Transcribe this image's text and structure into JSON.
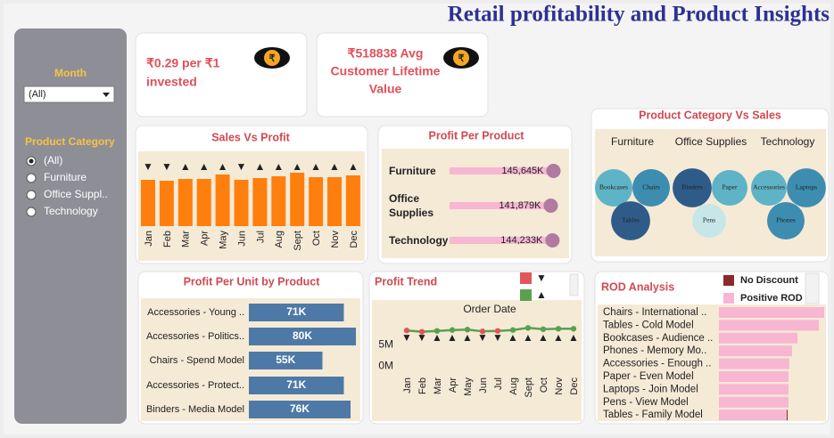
{
  "title": "Retail profitability and Product Insights",
  "filters": {
    "month": {
      "label": "Month",
      "selected": "(All)"
    },
    "category": {
      "label": "Product Category",
      "options": [
        "(All)",
        "Furniture",
        "Office Suppl..",
        "Technology"
      ],
      "selected": 0
    }
  },
  "kpis": [
    {
      "icon": "₹",
      "lines": [
        "₹0.29 per ₹1",
        "invested"
      ]
    },
    {
      "icon": "₹",
      "lines": [
        "₹518838 Avg",
        "Customer Lifetime",
        "Value"
      ]
    }
  ],
  "chart_data": [
    {
      "type": "bar",
      "title": "Sales Vs Profit",
      "categories": [
        "Jan",
        "Feb",
        "Mar",
        "Apr",
        "May",
        "Jun",
        "Jul",
        "Aug",
        "Sept",
        "Oct",
        "Nov",
        "Dec"
      ],
      "values": [
        52,
        51,
        53,
        53,
        58,
        52,
        54,
        56,
        60,
        55,
        55,
        57
      ],
      "indicators": [
        "▼",
        "▼",
        "▲",
        "▲",
        "▲",
        "▼",
        "▲",
        "▲",
        "▲",
        "▲",
        "▲",
        "▲"
      ],
      "color": "#ff7f0e",
      "ylim": [
        0,
        62
      ]
    },
    {
      "type": "hbar",
      "title": "Profit Per Product",
      "categories": [
        "Furniture",
        "Office Supplies",
        "Technology"
      ],
      "values": [
        145645,
        141879,
        144233
      ],
      "value_labels": [
        "145,645K",
        "141,879K",
        "144,233K"
      ],
      "color": "#f7b6d2",
      "marker_color": "#b07aa1",
      "xlim": [
        0,
        150000
      ]
    },
    {
      "type": "bubble",
      "title": "Product Category Vs Sales",
      "groups": [
        {
          "name": "Furniture",
          "categories": [
            "Bookcases",
            "Chairs",
            "Tables"
          ],
          "values": [
            440,
            440,
            480
          ],
          "colors": [
            "#5fb3c6",
            "#3d8db0",
            "#2f5b88"
          ]
        },
        {
          "name": "Office Supplies",
          "categories": [
            "Binders",
            "Paper",
            "Pens"
          ],
          "values": [
            480,
            400,
            360
          ],
          "colors": [
            "#2f5b88",
            "#5fb3c6",
            "#c6e6e8"
          ]
        },
        {
          "name": "Technology",
          "categories": [
            "Accessories",
            "Laptops",
            "Phones"
          ],
          "values": [
            400,
            480,
            440
          ],
          "colors": [
            "#5fb3c6",
            "#3d8db0",
            "#3d8db0"
          ]
        }
      ]
    },
    {
      "type": "hbar",
      "title": "Profit Per Unit by Product",
      "categories": [
        "Accessories - Young ..",
        "Accessories - Politics..",
        "Chairs - Spend Model",
        "Accessories - Protect..",
        "Binders - Media Model"
      ],
      "values": [
        71000,
        80000,
        55000,
        71000,
        76000
      ],
      "value_labels": [
        "71K",
        "80K",
        "55K",
        "71K",
        "76K"
      ],
      "color": "#4e79a7",
      "xlim": [
        0,
        80000
      ]
    },
    {
      "type": "line",
      "title": "Profit Trend",
      "x_title": "Order Date",
      "categories": [
        "Jan",
        "Feb",
        "Mar",
        "Apr",
        "May",
        "Jun",
        "Jul",
        "Aug",
        "Sept",
        "Oct",
        "Nov",
        "Dec"
      ],
      "values": [
        8300000,
        8000000,
        8200000,
        8400000,
        8500000,
        8100000,
        8200000,
        8400000,
        8900000,
        8600000,
        8700000,
        8700000
      ],
      "indicators": [
        "▼",
        "▼",
        "▲",
        "▲",
        "▲",
        "▼",
        "▼",
        "▲",
        "▲",
        "▲",
        "▲",
        "▲"
      ],
      "color": "#59a14f",
      "legend": [
        {
          "color": "#e15759",
          "label": "▼"
        },
        {
          "color": "#59a14f",
          "label": "▲"
        }
      ],
      "ylim": [
        -2000000,
        10000000
      ],
      "yticks": [
        {
          "value": 0,
          "label": "0M"
        },
        {
          "value": 5000000,
          "label": "5M"
        }
      ]
    },
    {
      "type": "stacked-hbar",
      "title": "ROD Analysis",
      "categories": [
        "Chairs - International ..",
        "Tables - Cold Model",
        "Bookcases - Audience ..",
        "Phones - Memory Mo..",
        "Accessories - Enough ..",
        "Paper - Even Model",
        "Laptops - Join Model",
        "Pens - View Model",
        "Tables - Family Model"
      ],
      "series": [
        {
          "name": "No Discount",
          "color": "#8b2a2a",
          "values": [
            0,
            0,
            0,
            0,
            0,
            0,
            0,
            0,
            1
          ]
        },
        {
          "name": "Positive ROD",
          "color": "#f7b6d2",
          "values": [
            118,
            112,
            88,
            82,
            79,
            78,
            78,
            78,
            76
          ]
        }
      ],
      "xlim": [
        0,
        120
      ]
    }
  ]
}
